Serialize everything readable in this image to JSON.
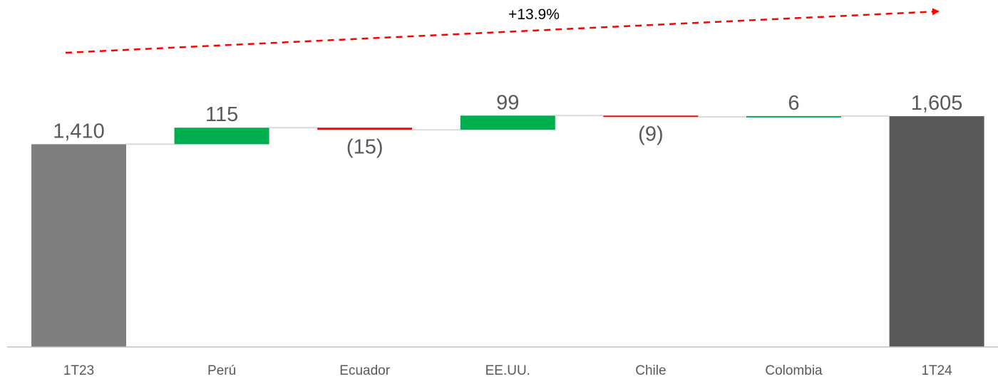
{
  "chart_data": {
    "type": "waterfall",
    "categories": [
      "1T23",
      "Perú",
      "Ecuador",
      "EE.UU.",
      "Chile",
      "Colombia",
      "1T24"
    ],
    "values": [
      1410,
      115,
      -15,
      99,
      -9,
      6,
      1605
    ],
    "value_labels": [
      "1,410",
      "115",
      "(15)",
      "99",
      "(9)",
      "6",
      "1,605"
    ],
    "kinds": [
      "total",
      "delta",
      "delta",
      "delta",
      "delta",
      "delta",
      "total"
    ],
    "growth_label": "+13.9%",
    "colors": {
      "start_total": "#7f7f7f",
      "end_total": "#595959",
      "increase": "#00b050",
      "decrease": "#ff0000",
      "connector": "#d9d9d9",
      "axis": "#bfbfbf",
      "growth_arrow": "#ff0000"
    }
  }
}
